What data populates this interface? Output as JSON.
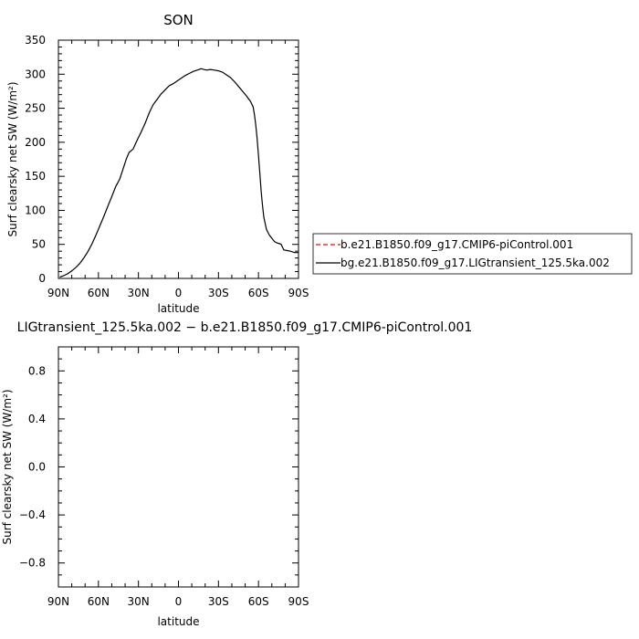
{
  "chart_data": [
    {
      "type": "line",
      "title": "SON",
      "xlabel": "latitude",
      "ylabel": "Surf clearsky net SW (W/m²)",
      "xlim": [
        -90,
        90
      ],
      "ylim": [
        0,
        350
      ],
      "x_ticks": [
        -90,
        -60,
        -30,
        0,
        30,
        60,
        90
      ],
      "x_tick_labels": [
        "90N",
        "60N",
        "30N",
        "0",
        "30S",
        "60S",
        "90S"
      ],
      "y_ticks": [
        0,
        50,
        100,
        150,
        200,
        250,
        300,
        350
      ],
      "y_tick_labels": [
        "0",
        "50",
        "100",
        "150",
        "200",
        "250",
        "300",
        "350"
      ],
      "legend": {
        "placement": "right",
        "entries": [
          {
            "name": "b.e21.B1850.f09_g17.CMIP6-piControl.001",
            "color": "#ff0000",
            "dash": "dashed"
          },
          {
            "name": "bg.e21.B1850.f09_g17.LIGtransient_125.5ka.002",
            "color": "#000000",
            "dash": "solid"
          }
        ]
      },
      "series": [
        {
          "name": "bg.e21.B1850.f09_g17.LIGtransient_125.5ka.002",
          "color": "#000000",
          "x": [
            -89,
            -86,
            -83,
            -80,
            -77,
            -74,
            -71,
            -68,
            -65,
            -62,
            -59,
            -56,
            -53,
            -50,
            -47,
            -44,
            -41,
            -39,
            -37,
            -34,
            -31,
            -28,
            -25,
            -22,
            -19,
            -16,
            -13,
            -10,
            -7,
            -4,
            -1,
            2,
            5,
            8,
            11,
            14,
            17,
            19,
            21,
            24,
            27,
            30,
            33,
            36,
            39,
            42,
            45,
            48,
            51,
            54,
            56,
            57,
            58,
            59,
            60,
            61,
            62,
            63,
            64,
            66,
            68,
            70,
            72,
            74,
            76,
            77,
            79,
            81,
            84,
            87,
            90
          ],
          "y": [
            2,
            4,
            7,
            11,
            16,
            22,
            30,
            39,
            50,
            63,
            77,
            91,
            106,
            120,
            135,
            146,
            164,
            176,
            185,
            190,
            203,
            215,
            228,
            243,
            255,
            263,
            271,
            277,
            283,
            286,
            290,
            294,
            298,
            301,
            304,
            306,
            308,
            307,
            306,
            307,
            306,
            305,
            303,
            299,
            295,
            289,
            282,
            275,
            268,
            260,
            252,
            240,
            225,
            205,
            180,
            155,
            128,
            108,
            90,
            72,
            64,
            59,
            54,
            52,
            51,
            50,
            42,
            41,
            40,
            38,
            38
          ]
        }
      ]
    },
    {
      "type": "line",
      "title": "LIGtransient_125.5ka.002 − b.e21.B1850.f09_g17.CMIP6-piControl.001",
      "xlabel": "latitude",
      "ylabel": "Surf clearsky net SW (W/m²)",
      "xlim": [
        -90,
        90
      ],
      "ylim": [
        -1,
        1
      ],
      "x_ticks": [
        -90,
        -60,
        -30,
        0,
        30,
        60,
        90
      ],
      "x_tick_labels": [
        "90N",
        "60N",
        "30N",
        "0",
        "30S",
        "60S",
        "90S"
      ],
      "y_ticks": [
        -0.8,
        -0.4,
        0.0,
        0.4,
        0.8
      ],
      "y_tick_labels": [
        "−0.8",
        "−0.4",
        "0.0",
        "0.4",
        "0.8"
      ],
      "series": []
    }
  ]
}
